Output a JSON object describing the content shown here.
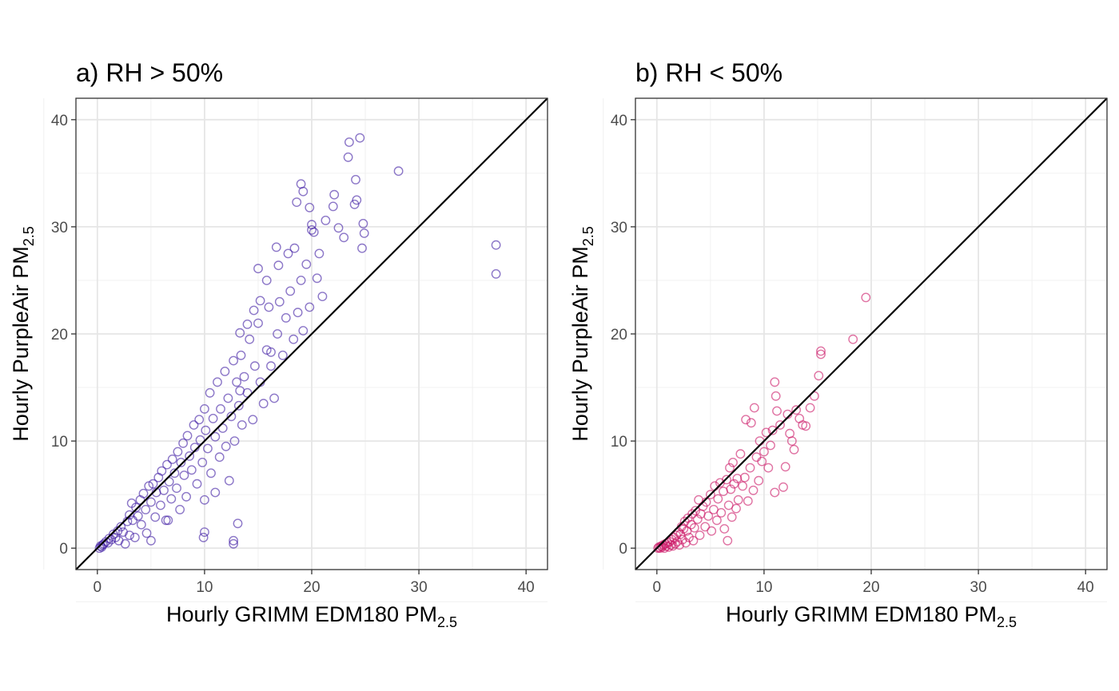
{
  "chart_data": [
    {
      "type": "scatter",
      "title": "a) RH > 50%",
      "xlabel": "Hourly GRIMM EDM180 PM",
      "xlabel_sub": "2.5",
      "ylabel": "Hourly PurpleAir PM",
      "ylabel_sub": "2.5",
      "xlim": [
        -2,
        42
      ],
      "ylim": [
        -2,
        42
      ],
      "xticks": [
        "0",
        "10",
        "20",
        "30",
        "40"
      ],
      "yticks": [
        "0",
        "10",
        "20",
        "30",
        "40"
      ],
      "grid": true,
      "reference_line": "y = x",
      "color": "#3F1DA3",
      "series": [
        {
          "points": [
            [
              0.2,
              0.0
            ],
            [
              0.3,
              0.2
            ],
            [
              0.4,
              0.1
            ],
            [
              0.5,
              0.3
            ],
            [
              0.6,
              0.4
            ],
            [
              0.8,
              0.6
            ],
            [
              1.0,
              0.5
            ],
            [
              1.1,
              0.9
            ],
            [
              1.3,
              0.8
            ],
            [
              1.5,
              1.3
            ],
            [
              1.7,
              1.0
            ],
            [
              1.9,
              1.6
            ],
            [
              2.0,
              0.7
            ],
            [
              2.2,
              2.0
            ],
            [
              2.4,
              1.5
            ],
            [
              2.6,
              0.4
            ],
            [
              2.8,
              2.5
            ],
            [
              3.0,
              1.2
            ],
            [
              3.0,
              3.1
            ],
            [
              3.2,
              4.2
            ],
            [
              3.3,
              2.6
            ],
            [
              3.5,
              1.0
            ],
            [
              3.6,
              3.8
            ],
            [
              3.8,
              3.0
            ],
            [
              4.0,
              4.5
            ],
            [
              4.1,
              2.2
            ],
            [
              4.3,
              5.1
            ],
            [
              4.5,
              3.6
            ],
            [
              4.6,
              1.4
            ],
            [
              4.8,
              5.8
            ],
            [
              5.0,
              4.3
            ],
            [
              5.0,
              0.7
            ],
            [
              5.2,
              6.0
            ],
            [
              5.4,
              2.9
            ],
            [
              5.5,
              5.2
            ],
            [
              5.7,
              6.6
            ],
            [
              5.9,
              4.0
            ],
            [
              6.0,
              7.2
            ],
            [
              6.2,
              5.4
            ],
            [
              6.4,
              2.6
            ],
            [
              6.5,
              7.8
            ],
            [
              6.7,
              6.2
            ],
            [
              6.9,
              4.6
            ],
            [
              7.0,
              8.3
            ],
            [
              7.2,
              7.0
            ],
            [
              7.4,
              5.6
            ],
            [
              7.5,
              9.0
            ],
            [
              7.7,
              3.6
            ],
            [
              7.8,
              8.0
            ],
            [
              8.0,
              9.8
            ],
            [
              8.1,
              6.8
            ],
            [
              8.3,
              4.8
            ],
            [
              8.4,
              10.5
            ],
            [
              8.6,
              8.6
            ],
            [
              8.8,
              7.3
            ],
            [
              9.0,
              11.5
            ],
            [
              9.1,
              9.4
            ],
            [
              9.3,
              6.0
            ],
            [
              9.5,
              12.0
            ],
            [
              9.6,
              10.1
            ],
            [
              9.8,
              8.0
            ],
            [
              10.0,
              13.0
            ],
            [
              10.0,
              4.5
            ],
            [
              10.1,
              11.0
            ],
            [
              10.3,
              9.3
            ],
            [
              10.5,
              14.5
            ],
            [
              10.6,
              7.0
            ],
            [
              10.8,
              12.1
            ],
            [
              11.0,
              10.4
            ],
            [
              11.0,
              5.2
            ],
            [
              11.2,
              15.5
            ],
            [
              11.4,
              8.5
            ],
            [
              11.5,
              13.0
            ],
            [
              11.7,
              11.2
            ],
            [
              11.9,
              16.5
            ],
            [
              12.0,
              9.5
            ],
            [
              12.2,
              14.0
            ],
            [
              12.3,
              6.3
            ],
            [
              12.5,
              12.3
            ],
            [
              12.7,
              17.5
            ],
            [
              12.8,
              10.0
            ],
            [
              13.0,
              15.5
            ],
            [
              13.2,
              13.3
            ],
            [
              13.4,
              18.0
            ],
            [
              13.5,
              11.5
            ],
            [
              13.7,
              16.0
            ],
            [
              14.0,
              14.5
            ],
            [
              14.2,
              19.5
            ],
            [
              14.5,
              12.0
            ],
            [
              14.7,
              17.0
            ],
            [
              15.0,
              21.0
            ],
            [
              15.2,
              15.5
            ],
            [
              15.5,
              13.5
            ],
            [
              15.8,
              18.5
            ],
            [
              16.0,
              22.5
            ],
            [
              16.2,
              17.0
            ],
            [
              16.5,
              14.0
            ],
            [
              16.8,
              20.0
            ],
            [
              17.0,
              23.0
            ],
            [
              17.3,
              18.0
            ],
            [
              17.6,
              21.5
            ],
            [
              18.0,
              24.0
            ],
            [
              18.3,
              19.5
            ],
            [
              18.7,
              22.0
            ],
            [
              19.0,
              25.0
            ],
            [
              19.2,
              20.3
            ],
            [
              19.5,
              26.5
            ],
            [
              19.8,
              22.5
            ],
            [
              20.0,
              30.2
            ],
            [
              20.2,
              29.5
            ],
            [
              20.5,
              25.2
            ],
            [
              20.7,
              27.5
            ],
            [
              21.0,
              23.5
            ],
            [
              21.3,
              30.6
            ],
            [
              22.0,
              31.9
            ],
            [
              22.1,
              33.0
            ],
            [
              22.5,
              29.9
            ],
            [
              23.0,
              29.0
            ],
            [
              23.4,
              36.5
            ],
            [
              23.5,
              37.9
            ],
            [
              24.0,
              32.1
            ],
            [
              24.1,
              34.4
            ],
            [
              24.2,
              32.5
            ],
            [
              24.5,
              38.3
            ],
            [
              24.7,
              28.0
            ],
            [
              24.8,
              30.3
            ],
            [
              24.9,
              29.4
            ],
            [
              19.0,
              34.0
            ],
            [
              19.2,
              33.3
            ],
            [
              18.6,
              32.3
            ],
            [
              19.8,
              31.8
            ],
            [
              20.0,
              29.7
            ],
            [
              18.4,
              28.0
            ],
            [
              17.8,
              27.5
            ],
            [
              16.7,
              28.1
            ],
            [
              16.9,
              26.4
            ],
            [
              15.8,
              25.0
            ],
            [
              15.2,
              23.1
            ],
            [
              15.0,
              26.1
            ],
            [
              14.6,
              22.2
            ],
            [
              14.0,
              20.9
            ],
            [
              13.3,
              20.1
            ],
            [
              16.2,
              18.3
            ],
            [
              13.3,
              14.7
            ],
            [
              10.0,
              1.5
            ],
            [
              9.9,
              1.0
            ],
            [
              12.7,
              0.4
            ],
            [
              12.7,
              0.7
            ],
            [
              13.1,
              2.3
            ],
            [
              6.6,
              2.6
            ],
            [
              28.1,
              35.2
            ],
            [
              37.2,
              28.3
            ],
            [
              37.2,
              25.6
            ]
          ]
        }
      ]
    },
    {
      "type": "scatter",
      "title": "b) RH < 50%",
      "xlabel": "Hourly GRIMM EDM180 PM",
      "xlabel_sub": "2.5",
      "ylabel": "Hourly PurpleAir PM",
      "ylabel_sub": "2.5",
      "xlim": [
        -2,
        42
      ],
      "ylim": [
        -2,
        42
      ],
      "xticks": [
        "0",
        "10",
        "20",
        "30",
        "40"
      ],
      "yticks": [
        "0",
        "10",
        "20",
        "30",
        "40"
      ],
      "grid": true,
      "reference_line": "y = x",
      "color": "#CC1566",
      "series": [
        {
          "points": [
            [
              0.1,
              0.0
            ],
            [
              0.2,
              0.1
            ],
            [
              0.3,
              0.0
            ],
            [
              0.4,
              0.2
            ],
            [
              0.5,
              0.1
            ],
            [
              0.6,
              0.3
            ],
            [
              0.7,
              0.0
            ],
            [
              0.8,
              0.4
            ],
            [
              0.9,
              0.2
            ],
            [
              1.0,
              0.5
            ],
            [
              1.1,
              0.1
            ],
            [
              1.2,
              0.6
            ],
            [
              1.3,
              0.3
            ],
            [
              1.4,
              0.8
            ],
            [
              1.5,
              0.2
            ],
            [
              1.6,
              1.0
            ],
            [
              1.7,
              0.4
            ],
            [
              1.8,
              1.2
            ],
            [
              1.9,
              0.6
            ],
            [
              2.0,
              1.5
            ],
            [
              2.1,
              0.3
            ],
            [
              2.2,
              1.3
            ],
            [
              2.3,
              2.0
            ],
            [
              2.4,
              0.8
            ],
            [
              2.5,
              1.8
            ],
            [
              2.6,
              2.5
            ],
            [
              2.7,
              0.5
            ],
            [
              2.8,
              1.6
            ],
            [
              2.9,
              2.8
            ],
            [
              3.0,
              1.0
            ],
            [
              3.2,
              2.2
            ],
            [
              3.3,
              3.2
            ],
            [
              3.4,
              0.7
            ],
            [
              3.5,
              1.9
            ],
            [
              3.6,
              3.5
            ],
            [
              3.8,
              2.7
            ],
            [
              3.9,
              4.5
            ],
            [
              4.0,
              1.2
            ],
            [
              4.1,
              3.2
            ],
            [
              4.3,
              3.9
            ],
            [
              4.5,
              2.0
            ],
            [
              4.6,
              4.3
            ],
            [
              4.8,
              3.0
            ],
            [
              5.0,
              5.0
            ],
            [
              5.1,
              1.6
            ],
            [
              5.3,
              3.6
            ],
            [
              5.4,
              5.8
            ],
            [
              5.6,
              2.6
            ],
            [
              5.7,
              4.6
            ],
            [
              5.9,
              6.1
            ],
            [
              6.0,
              3.3
            ],
            [
              6.2,
              5.3
            ],
            [
              6.3,
              1.8
            ],
            [
              6.5,
              6.4
            ],
            [
              6.6,
              0.7
            ],
            [
              6.7,
              4.0
            ],
            [
              6.8,
              7.5
            ],
            [
              6.9,
              5.5
            ],
            [
              7.0,
              2.9
            ],
            [
              7.1,
              8.0
            ],
            [
              7.2,
              6.0
            ],
            [
              7.4,
              3.7
            ],
            [
              7.5,
              6.5
            ],
            [
              7.6,
              4.5
            ],
            [
              7.8,
              8.8
            ],
            [
              8.0,
              5.8
            ],
            [
              8.2,
              6.6
            ],
            [
              8.3,
              12.0
            ],
            [
              8.5,
              4.4
            ],
            [
              8.7,
              7.5
            ],
            [
              8.8,
              11.7
            ],
            [
              9.0,
              5.4
            ],
            [
              9.1,
              13.1
            ],
            [
              9.3,
              8.5
            ],
            [
              9.5,
              6.3
            ],
            [
              9.6,
              10.0
            ],
            [
              9.8,
              8.1
            ],
            [
              10.0,
              9.0
            ],
            [
              10.2,
              10.8
            ],
            [
              10.4,
              7.5
            ],
            [
              10.6,
              9.6
            ],
            [
              10.8,
              11.0
            ],
            [
              11.0,
              15.5
            ],
            [
              11.0,
              5.2
            ],
            [
              11.1,
              14.2
            ],
            [
              11.2,
              12.8
            ],
            [
              11.5,
              11.5
            ],
            [
              11.8,
              5.7
            ],
            [
              12.0,
              7.6
            ],
            [
              12.2,
              12.5
            ],
            [
              12.4,
              10.7
            ],
            [
              12.6,
              10.0
            ],
            [
              12.8,
              9.2
            ],
            [
              13.0,
              12.9
            ],
            [
              13.3,
              12.1
            ],
            [
              13.6,
              11.5
            ],
            [
              13.9,
              11.4
            ],
            [
              14.3,
              13.1
            ],
            [
              14.7,
              14.2
            ],
            [
              15.1,
              16.1
            ],
            [
              15.3,
              18.1
            ],
            [
              15.3,
              18.4
            ],
            [
              18.3,
              19.5
            ],
            [
              19.5,
              23.4
            ]
          ]
        }
      ]
    }
  ]
}
